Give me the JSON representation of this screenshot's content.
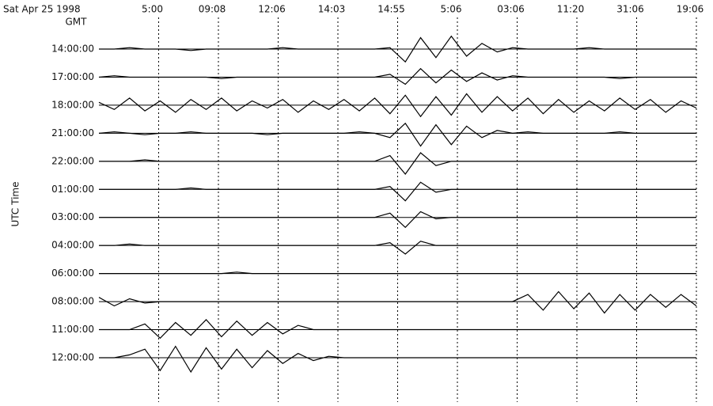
{
  "chart_data": {
    "type": "helicorder",
    "title": "Sat Apr 25 1998",
    "corner_label": "GMT",
    "y_label": "UTC Time",
    "x_labels": [
      "5:00",
      "09:08",
      "12:06",
      "14:03",
      "14:55",
      "5:06",
      "03:06",
      "11:20",
      "31:06",
      "19:06"
    ],
    "rows": [
      {
        "label": "14:00:00",
        "values": [
          0,
          0,
          0.1,
          0,
          0,
          0,
          -0.1,
          0,
          0,
          0,
          0,
          0,
          0.1,
          0,
          0,
          0,
          0,
          0,
          0,
          0.1,
          -0.9,
          0.8,
          -0.6,
          0.9,
          -0.5,
          0.4,
          -0.2,
          0.1,
          0,
          0,
          0,
          0,
          0.1,
          0,
          0,
          0,
          0,
          0,
          0,
          0
        ]
      },
      {
        "label": "17:00:00",
        "values": [
          0,
          0.1,
          0,
          0,
          0,
          0,
          0,
          0,
          -0.1,
          0,
          0,
          0,
          0,
          0,
          0,
          0,
          0,
          0,
          0,
          0.2,
          -0.5,
          0.6,
          -0.4,
          0.5,
          -0.3,
          0.3,
          -0.2,
          0.1,
          0,
          0,
          0,
          0,
          0,
          0,
          -0.1,
          0,
          0,
          0,
          0,
          0
        ]
      },
      {
        "label": "18:00:00",
        "values": [
          0.2,
          -0.3,
          0.5,
          -0.4,
          0.3,
          -0.5,
          0.4,
          -0.3,
          0.5,
          -0.4,
          0.3,
          -0.2,
          0.4,
          -0.5,
          0.3,
          -0.3,
          0.4,
          -0.4,
          0.5,
          -0.6,
          0.7,
          -0.8,
          0.6,
          -0.7,
          0.8,
          -0.5,
          0.6,
          -0.4,
          0.5,
          -0.6,
          0.4,
          -0.5,
          0.3,
          -0.4,
          0.5,
          -0.3,
          0.4,
          -0.5,
          0.3,
          -0.2
        ]
      },
      {
        "label": "21:00:00",
        "values": [
          0,
          0.1,
          0,
          -0.1,
          0,
          0,
          0.1,
          0,
          0,
          0,
          0,
          -0.1,
          0,
          0,
          0,
          0,
          0,
          0.1,
          0,
          -0.3,
          0.7,
          -0.9,
          0.6,
          -0.8,
          0.5,
          -0.3,
          0.2,
          0,
          0.1,
          0,
          0,
          0,
          0,
          0,
          0.1,
          0,
          0,
          0,
          0,
          0
        ]
      },
      {
        "label": "22:00:00",
        "values": [
          0,
          0,
          0,
          0.1,
          0,
          0,
          0,
          0,
          0,
          0,
          0,
          0,
          0,
          0,
          0,
          0,
          0,
          0,
          0,
          0.4,
          -0.9,
          0.6,
          -0.3,
          0,
          0,
          0,
          0,
          0,
          0,
          0,
          0,
          0,
          0,
          0,
          0,
          0,
          0,
          0,
          0,
          0
        ]
      },
      {
        "label": "01:00:00",
        "values": [
          0,
          0,
          0,
          0,
          0,
          0,
          0.1,
          0,
          0,
          0,
          0,
          0,
          0,
          0,
          0,
          0,
          0,
          0,
          0,
          0.2,
          -0.8,
          0.5,
          -0.2,
          0,
          0,
          0,
          0,
          0,
          0,
          0,
          0,
          0,
          0,
          0,
          0,
          0,
          0,
          0,
          0,
          0
        ]
      },
      {
        "label": "03:00:00",
        "values": [
          0,
          0,
          0,
          0,
          0,
          0,
          0,
          0,
          0,
          0,
          0,
          0,
          0,
          0,
          0,
          0,
          0,
          0,
          0,
          0.3,
          -0.7,
          0.4,
          -0.1,
          0,
          0,
          0,
          0,
          0,
          0,
          0,
          0,
          0,
          0,
          0,
          0,
          0,
          0,
          0,
          0,
          0
        ]
      },
      {
        "label": "04:00:00",
        "values": [
          0,
          0,
          0.1,
          0,
          0,
          0,
          0,
          0,
          0,
          0,
          0,
          0,
          0,
          0,
          0,
          0,
          0,
          0,
          0,
          0.2,
          -0.6,
          0.3,
          0,
          0,
          0,
          0,
          0,
          0,
          0,
          0,
          0,
          0,
          0,
          0,
          0,
          0,
          0,
          0,
          0,
          0
        ]
      },
      {
        "label": "06:00:00",
        "values": [
          0,
          0,
          0,
          0,
          0,
          0,
          0,
          0,
          0,
          0.1,
          0,
          0,
          0,
          0,
          0,
          0,
          0,
          0,
          0,
          0,
          0,
          0,
          0,
          0,
          0,
          0,
          0,
          0,
          0,
          0,
          0,
          0,
          0,
          0,
          0,
          0,
          0,
          0,
          0,
          0
        ]
      },
      {
        "label": "08:00:00",
        "values": [
          0.3,
          -0.3,
          0.2,
          -0.1,
          0,
          0,
          0,
          0,
          0,
          0,
          0,
          0,
          0,
          0,
          0,
          0,
          0,
          0,
          0,
          0,
          0,
          0,
          0,
          0,
          0,
          0,
          0,
          0,
          0.5,
          -0.6,
          0.7,
          -0.5,
          0.6,
          -0.8,
          0.5,
          -0.6,
          0.5,
          -0.4,
          0.5,
          -0.3
        ]
      },
      {
        "label": "11:00:00",
        "values": [
          0,
          0,
          0,
          0.4,
          -0.6,
          0.5,
          -0.4,
          0.7,
          -0.5,
          0.6,
          -0.4,
          0.5,
          -0.3,
          0.3,
          0,
          0,
          0,
          0,
          0,
          0,
          0,
          0,
          0,
          0,
          0,
          0,
          0,
          0,
          0,
          0,
          0,
          0,
          0,
          0,
          0,
          0,
          0,
          0,
          0,
          0
        ]
      },
      {
        "label": "12:00:00",
        "values": [
          0,
          0,
          0.2,
          0.6,
          -0.9,
          0.8,
          -1,
          0.7,
          -0.8,
          0.6,
          -0.7,
          0.5,
          -0.4,
          0.3,
          -0.2,
          0.1,
          0,
          0,
          0,
          0,
          0,
          0,
          0,
          0,
          0,
          0,
          0,
          0,
          0,
          0,
          0,
          0,
          0,
          0,
          0,
          0,
          0,
          0,
          0,
          0
        ]
      }
    ]
  }
}
